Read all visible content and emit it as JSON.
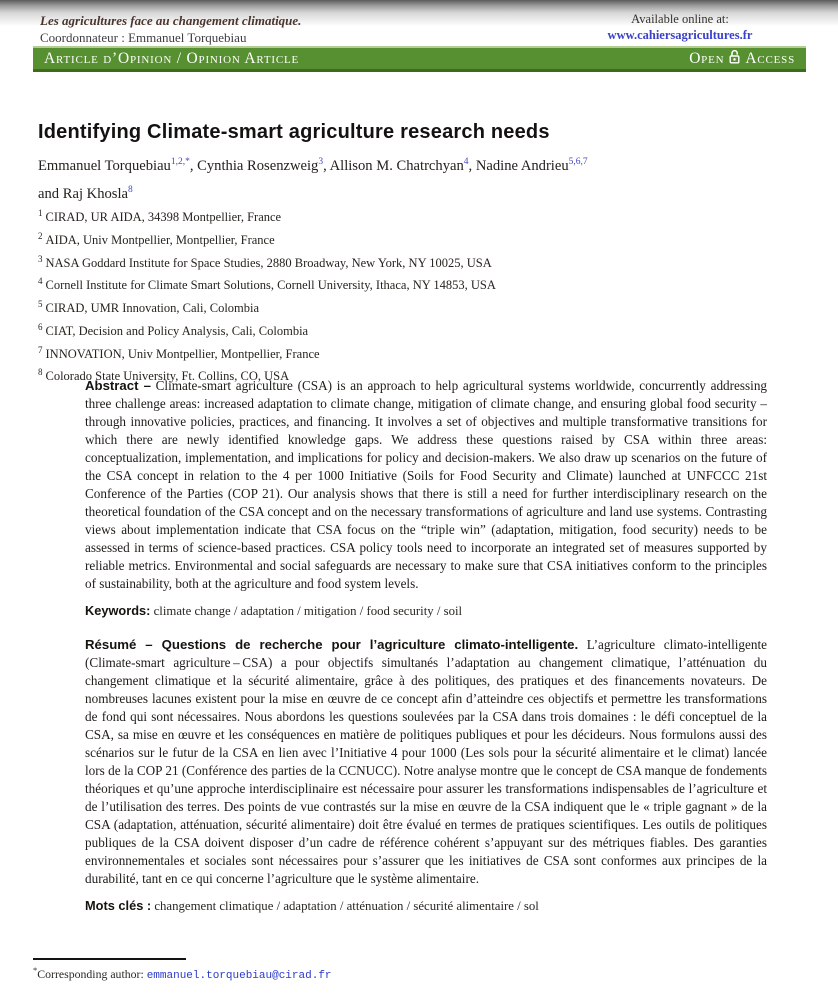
{
  "colors": {
    "banner_green": "#579030",
    "banner_green_dark": "#3e6a1e",
    "link_blue": "#3a41c8",
    "superscript_blue": "#4646c0",
    "email_blue": "#2b3bc8"
  },
  "header": {
    "series_title": "Les agricultures face au changement climatique.",
    "coordinator": "Coordonnateur : Emmanuel Torquebiau",
    "available_label": "Available online at:",
    "available_url": "www.cahiersagricultures.fr"
  },
  "banner": {
    "left_label": "Article d’Opinion / Opinion Article",
    "open_label": "Open",
    "access_label": "Access"
  },
  "article": {
    "title": "Identifying Climate-smart agriculture research needs",
    "authors": [
      {
        "name": "Emmanuel Torquebiau",
        "sup": "1,2,*",
        "sep": "",
        "break_before": false
      },
      {
        "name": "Cynthia Rosenzweig",
        "sup": "3",
        "sep": ", ",
        "break_before": false
      },
      {
        "name": "Allison M. Chatrchyan",
        "sup": "4",
        "sep": ", ",
        "break_before": false
      },
      {
        "name": "Nadine Andrieu",
        "sup": "5,6,7",
        "sep": ", ",
        "break_before": false
      },
      {
        "name": "Raj Khosla",
        "sup": "8",
        "sep": "and ",
        "break_before": true
      }
    ],
    "affiliations": [
      {
        "num": "1",
        "text": "CIRAD, UR AIDA, 34398 Montpellier, France"
      },
      {
        "num": "2",
        "text": "AIDA, Univ Montpellier, Montpellier, France"
      },
      {
        "num": "3",
        "text": "NASA Goddard Institute for Space Studies, 2880 Broadway, New York, NY 10025, USA"
      },
      {
        "num": "4",
        "text": "Cornell Institute for Climate Smart Solutions, Cornell University, Ithaca, NY 14853, USA"
      },
      {
        "num": "5",
        "text": "CIRAD, UMR Innovation, Cali, Colombia"
      },
      {
        "num": "6",
        "text": "CIAT, Decision and Policy Analysis, Cali, Colombia"
      },
      {
        "num": "7",
        "text": "INNOVATION, Univ Montpellier, Montpellier, France"
      },
      {
        "num": "8",
        "text": "Colorado State University, Ft. Collins, CO, USA"
      }
    ]
  },
  "abstract": {
    "label": "Abstract –",
    "text": "Climate-smart agriculture (CSA) is an approach to help agricultural systems worldwide, concurrently addressing three challenge areas: increased adaptation to climate change, mitigation of climate change, and ensuring global food security – through innovative policies, practices, and financing. It involves a set of objectives and multiple transformative transitions for which there are newly identified knowledge gaps. We address these questions raised by CSA within three areas: conceptualization, implementation, and implications for policy and decision-makers. We also draw up scenarios on the future of the CSA concept in relation to the 4 per 1000 Initiative (Soils for Food Security and Climate) launched at UNFCCC 21st Conference of the Parties (COP 21). Our analysis shows that there is still a need for further interdisciplinary research on the theoretical foundation of the CSA concept and on the necessary transformations of agriculture and land use systems. Contrasting views about implementation indicate that CSA focus on the “triple win” (adaptation, mitigation, food security) needs to be assessed in terms of science-based practices. CSA policy tools need to incorporate an integrated set of measures supported by reliable metrics. Environmental and social safeguards are necessary to make sure that CSA initiatives conform to the principles of sustainability, both at the agriculture and food system levels."
  },
  "keywords": {
    "label": "Keywords:",
    "value": "climate change / adaptation / mitigation / food security / soil"
  },
  "resume": {
    "label": "Résumé – Questions de recherche pour l’agriculture climato-intelligente.",
    "text": "L’agriculture climato-intelligente (Climate-smart agriculture – CSA) a pour objectifs simultanés l’adaptation au changement climatique, l’atténuation du changement climatique et la sécurité alimentaire, grâce à des politiques, des pratiques et des financements novateurs. De nombreuses lacunes existent pour la mise en œuvre de ce concept afin d’atteindre ces objectifs et permettre les transformations de fond qui sont nécessaires. Nous abordons les questions soulevées par la CSA dans trois domaines : le défi conceptuel de la CSA, sa mise en œuvre et les conséquences en matière de politiques publiques et pour les décideurs. Nous formulons aussi des scénarios sur le futur de la CSA en lien avec l’Initiative 4 pour 1000 (Les sols pour la sécurité alimentaire et le climat) lancée lors de la COP 21 (Conférence des parties de la CCNUCC). Notre analyse montre que le concept de CSA manque de fondements théoriques et qu’une approche interdisciplinaire est nécessaire pour assurer les transformations indispensables de l’agriculture et de l’utilisation des terres. Des points de vue contrastés sur la mise en œuvre de la CSA indiquent que le « triple gagnant » de la CSA (adaptation, atténuation, sécurité alimentaire) doit être évalué en termes de pratiques scientifiques. Les outils de politiques publiques de la CSA doivent disposer d’un cadre de référence cohérent s’appuyant sur des métriques fiables. Des garanties environnementales et sociales sont nécessaires pour s’assurer que les initiatives de CSA sont conformes aux principes de la durabilité, tant en ce qui concerne l’agriculture que le système alimentaire."
  },
  "mots": {
    "label": "Mots clés :",
    "value": "changement climatique / adaptation / atténuation / sécurité alimentaire / sol"
  },
  "footnote": {
    "star": "*",
    "label": "Corresponding author: ",
    "email": "emmanuel.torquebiau@cirad.fr"
  }
}
